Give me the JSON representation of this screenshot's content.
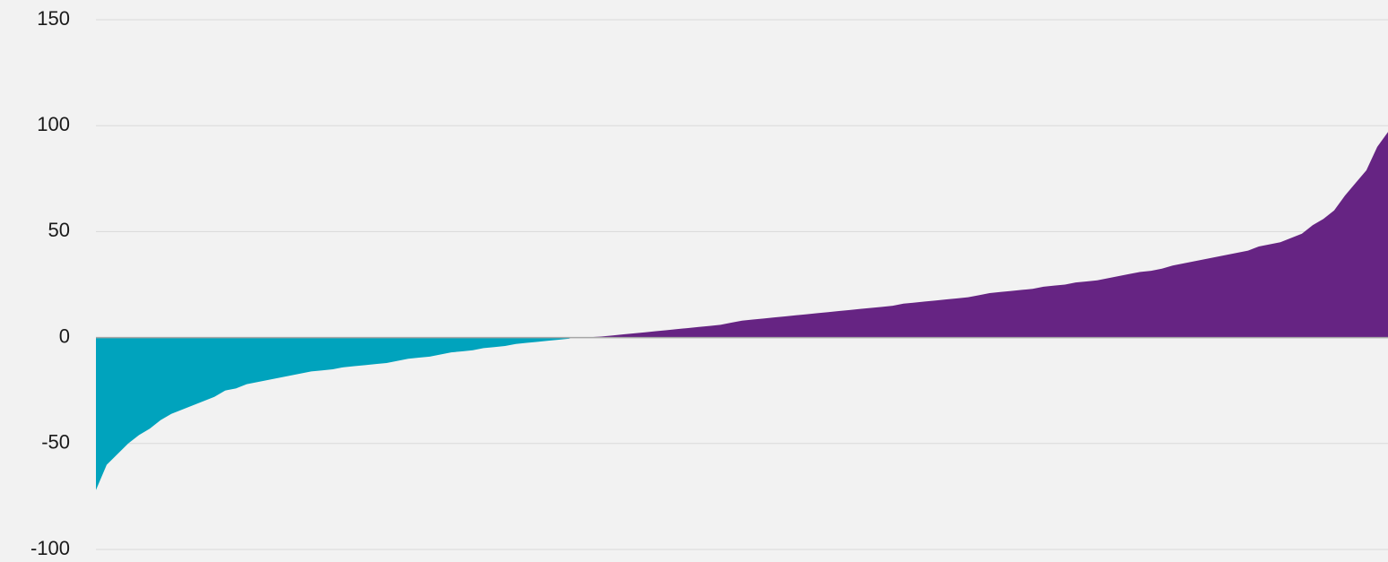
{
  "chart_data": {
    "type": "area",
    "values": [
      -72,
      -60,
      -55,
      -50,
      -46,
      -43,
      -39,
      -36,
      -34,
      -32,
      -30,
      -28,
      -25,
      -24,
      -22,
      -21,
      -20,
      -19,
      -18,
      -17,
      -16,
      -15.5,
      -15,
      -14,
      -13.5,
      -13,
      -12.5,
      -12,
      -11,
      -10,
      -9.5,
      -9,
      -8,
      -7,
      -6.5,
      -6,
      -5,
      -4.5,
      -4,
      -3,
      -2.5,
      -2,
      -1.5,
      -1,
      -0.5,
      0,
      0.2,
      0.5,
      1,
      1.5,
      2,
      2.5,
      3,
      3.5,
      4,
      4.5,
      5,
      5.5,
      6,
      7,
      8,
      8.5,
      9,
      9.5,
      10,
      10.5,
      11,
      11.5,
      12,
      12.5,
      13,
      13.5,
      14,
      14.5,
      15,
      16,
      16.5,
      17,
      17.5,
      18,
      18.5,
      19,
      20,
      21,
      21.5,
      22,
      22.5,
      23,
      24,
      24.5,
      25,
      26,
      26.5,
      27,
      28,
      29,
      30,
      31,
      31.5,
      32.5,
      34,
      35,
      36,
      37,
      38,
      39,
      40,
      41,
      43,
      44,
      45,
      47,
      49,
      53,
      56,
      60,
      67,
      73,
      79,
      90,
      97
    ],
    "color": "#662483",
    "negative_color": "#00a3bd",
    "ylim": [
      -100,
      150
    ],
    "yticks": [
      -100,
      -50,
      0,
      50,
      100,
      150
    ],
    "grid": true
  }
}
